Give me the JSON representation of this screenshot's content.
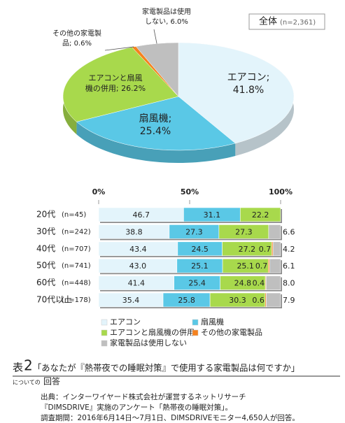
{
  "chart_data": [
    {
      "type": "pie",
      "badge": "全体",
      "badge_n": "(n=2,361)",
      "values": [
        41.8,
        25.4,
        26.2,
        0.6,
        6.0
      ],
      "colors": [
        "#e3f4fb",
        "#5ac8e6",
        "#a8d94c",
        "#f5821f",
        "#bfbfbf"
      ],
      "labels": [
        [
          "エアコン;",
          "41.8%"
        ],
        [
          "扇風機;",
          "25.4%"
        ],
        [
          "エアコンと扇風",
          "機の併用; 26.2%"
        ],
        [
          "その他の家電製",
          "品; 0.6%"
        ],
        [
          "家電製品は使用",
          "しない, 6.0%"
        ]
      ]
    },
    {
      "type": "hbar",
      "stacked": true,
      "categories": [
        "20代",
        "30代",
        "40代",
        "50代",
        "60代",
        "70代以上"
      ],
      "n_labels": [
        "(n=45)",
        "(n=242)",
        "(n=707)",
        "(n=741)",
        "(n=448)",
        "(n=178)"
      ],
      "xlim": [
        0,
        100
      ],
      "xticks": [
        {
          "value": 0,
          "label": "0%"
        },
        {
          "value": 50,
          "label": "50%"
        },
        {
          "value": 100,
          "label": "100%"
        }
      ],
      "series": [
        {
          "name": "エアコン",
          "color": "#e3f4fb",
          "values": [
            46.7,
            38.8,
            43.4,
            43.0,
            41.4,
            35.4
          ],
          "value_labels": [
            "46.7",
            "38.8",
            "43.4",
            "43.0",
            "41.4",
            "35.4"
          ]
        },
        {
          "name": "扇風機",
          "color": "#5ac8e6",
          "values": [
            31.1,
            27.3,
            24.5,
            25.1,
            25.4,
            25.8
          ],
          "value_labels": [
            "31.1",
            "27.3",
            "24.5",
            "25.1",
            "25.4",
            "25.8"
          ]
        },
        {
          "name": "エアコンと扇風機の併用",
          "color": "#a8d94c",
          "values": [
            22.2,
            27.3,
            27.2,
            25.1,
            24.8,
            30.3
          ],
          "value_labels": [
            "22.2",
            "27.3",
            "27.2",
            "25.1",
            "24.8",
            "30.3"
          ]
        },
        {
          "name": "その他の家電製品",
          "color": "#f5821f",
          "values": [
            0,
            0,
            0.7,
            0.7,
            0.4,
            0.6
          ],
          "value_labels": [
            null,
            null,
            "0.7",
            "0.7",
            "0.4",
            "0.6"
          ]
        },
        {
          "name": "家電製品は使用しない",
          "color": "#bfbfbf",
          "values": [
            0,
            6.6,
            4.2,
            6.1,
            8.0,
            7.9
          ],
          "value_labels": [
            null,
            "6.6",
            "4.2",
            "6.1",
            "8.0",
            "7.9"
          ]
        }
      ]
    }
  ],
  "caption": {
    "label": "表",
    "number": "2",
    "title": "「あなたが『熱帯夜での睡眠対策』で使用する家電製品は何ですか」",
    "small": "についての",
    "tail": "回答"
  },
  "source": [
    "出典：インターワイヤード株式会社が運営するネットリサーチ",
    "『DIMSDRIVE』実施のアンケート「熱帯夜の睡眠対策」。",
    "調査期間：2016年6月14日～7月1日、DIMSDRIVEモニター4,650人が回答。"
  ]
}
